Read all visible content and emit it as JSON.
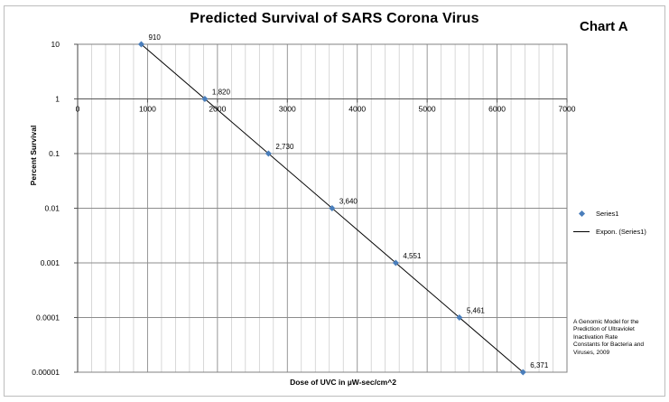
{
  "chart_data": {
    "type": "scatter",
    "title": "Predicted Survival of SARS Corona Virus",
    "chart_tag": "Chart A",
    "xlabel": "Dose of UVC in µW-sec/cm^2",
    "ylabel": "Percent Survival",
    "xlim": [
      0,
      7000
    ],
    "ylim": [
      1e-05,
      10
    ],
    "y_scale": "log",
    "x_ticks": [
      "0",
      "1000",
      "2000",
      "3000",
      "4000",
      "5000",
      "6000",
      "7000"
    ],
    "y_ticks": [
      "10",
      "1",
      "0.1",
      "0.01",
      "0.001",
      "0.0001",
      "0.00001"
    ],
    "x_axis_crosses_at": 1,
    "grid": true,
    "legend_position": "right",
    "series": [
      {
        "name": "Series1",
        "color": "#4a7ebb",
        "marker": "diamond",
        "x": [
          910,
          1820,
          2730,
          3640,
          4551,
          5461,
          6371
        ],
        "y": [
          10,
          1,
          0.1,
          0.01,
          0.001,
          0.0001,
          1e-05
        ],
        "point_labels": [
          "910",
          "1,820",
          "2,730",
          "3,640",
          "4,551",
          "5,461",
          "6,371"
        ]
      }
    ],
    "trendline": {
      "name": "Expon. (Series1)",
      "type": "exponential",
      "color": "#000000"
    },
    "annotation": "A Genomic Model for the Prediction of Ultraviolet Inactivation Rate Constants for Bacteria and Viruses, 2009"
  }
}
